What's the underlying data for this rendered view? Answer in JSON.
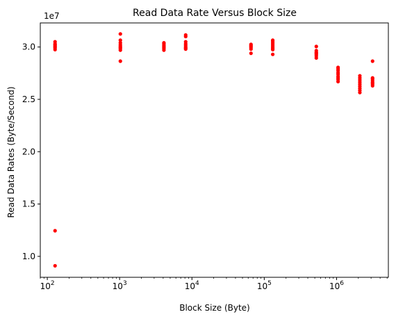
{
  "chart_data": {
    "type": "scatter",
    "title": "Read Data Rate Versus Block Size",
    "xlabel": "Block Size (Byte)",
    "ylabel": "Read Data Rates (Byte/Second)",
    "y_offset_label": "1e7",
    "x_scale": "log",
    "xlim": [
      80,
      5200000
    ],
    "ylim": [
      8000000,
      32300000
    ],
    "x_tick_labels": [
      "10^2",
      "10^3",
      "10^4",
      "10^5",
      "10^6"
    ],
    "y_tick_labels": [
      "1.0",
      "1.5",
      "2.0",
      "2.5",
      "3.0"
    ],
    "y_tick_values": [
      10000000,
      15000000,
      20000000,
      25000000,
      30000000
    ],
    "grid": false,
    "marker_color": "#ff0000",
    "groups": [
      {
        "x": 128,
        "y": [
          29750000,
          29900000,
          30000000,
          30100000,
          30200000,
          30300000,
          30500000,
          12450000,
          9100000
        ]
      },
      {
        "x": 1024,
        "y": [
          28650000,
          29700000,
          29850000,
          29950000,
          30050000,
          30200000,
          30400000,
          30650000,
          31250000
        ]
      },
      {
        "x": 4096,
        "y": [
          29700000,
          29850000,
          29950000,
          30050000,
          30150000,
          30300000,
          30400000
        ]
      },
      {
        "x": 8192,
        "y": [
          29800000,
          29900000,
          30000000,
          30150000,
          30300000,
          30500000,
          31000000,
          31150000
        ]
      },
      {
        "x": 65536,
        "y": [
          29400000,
          29800000,
          29950000,
          30050000,
          30150000,
          30250000
        ]
      },
      {
        "x": 131072,
        "y": [
          29300000,
          29750000,
          29850000,
          29950000,
          30100000,
          30250000,
          30400000,
          30550000,
          30650000
        ]
      },
      {
        "x": 524288,
        "y": [
          28950000,
          29150000,
          29300000,
          29400000,
          29500000,
          29650000,
          30050000
        ]
      },
      {
        "x": 1048576,
        "y": [
          26700000,
          26900000,
          27050000,
          27200000,
          27400000,
          27550000,
          27750000,
          27900000,
          28050000
        ]
      },
      {
        "x": 2097152,
        "y": [
          25650000,
          25850000,
          26050000,
          26250000,
          26450000,
          26650000,
          26850000,
          27050000,
          27250000
        ]
      },
      {
        "x": 3145728,
        "y": [
          26300000,
          26450000,
          26550000,
          26650000,
          26800000,
          26950000,
          27050000,
          28650000
        ]
      }
    ]
  }
}
